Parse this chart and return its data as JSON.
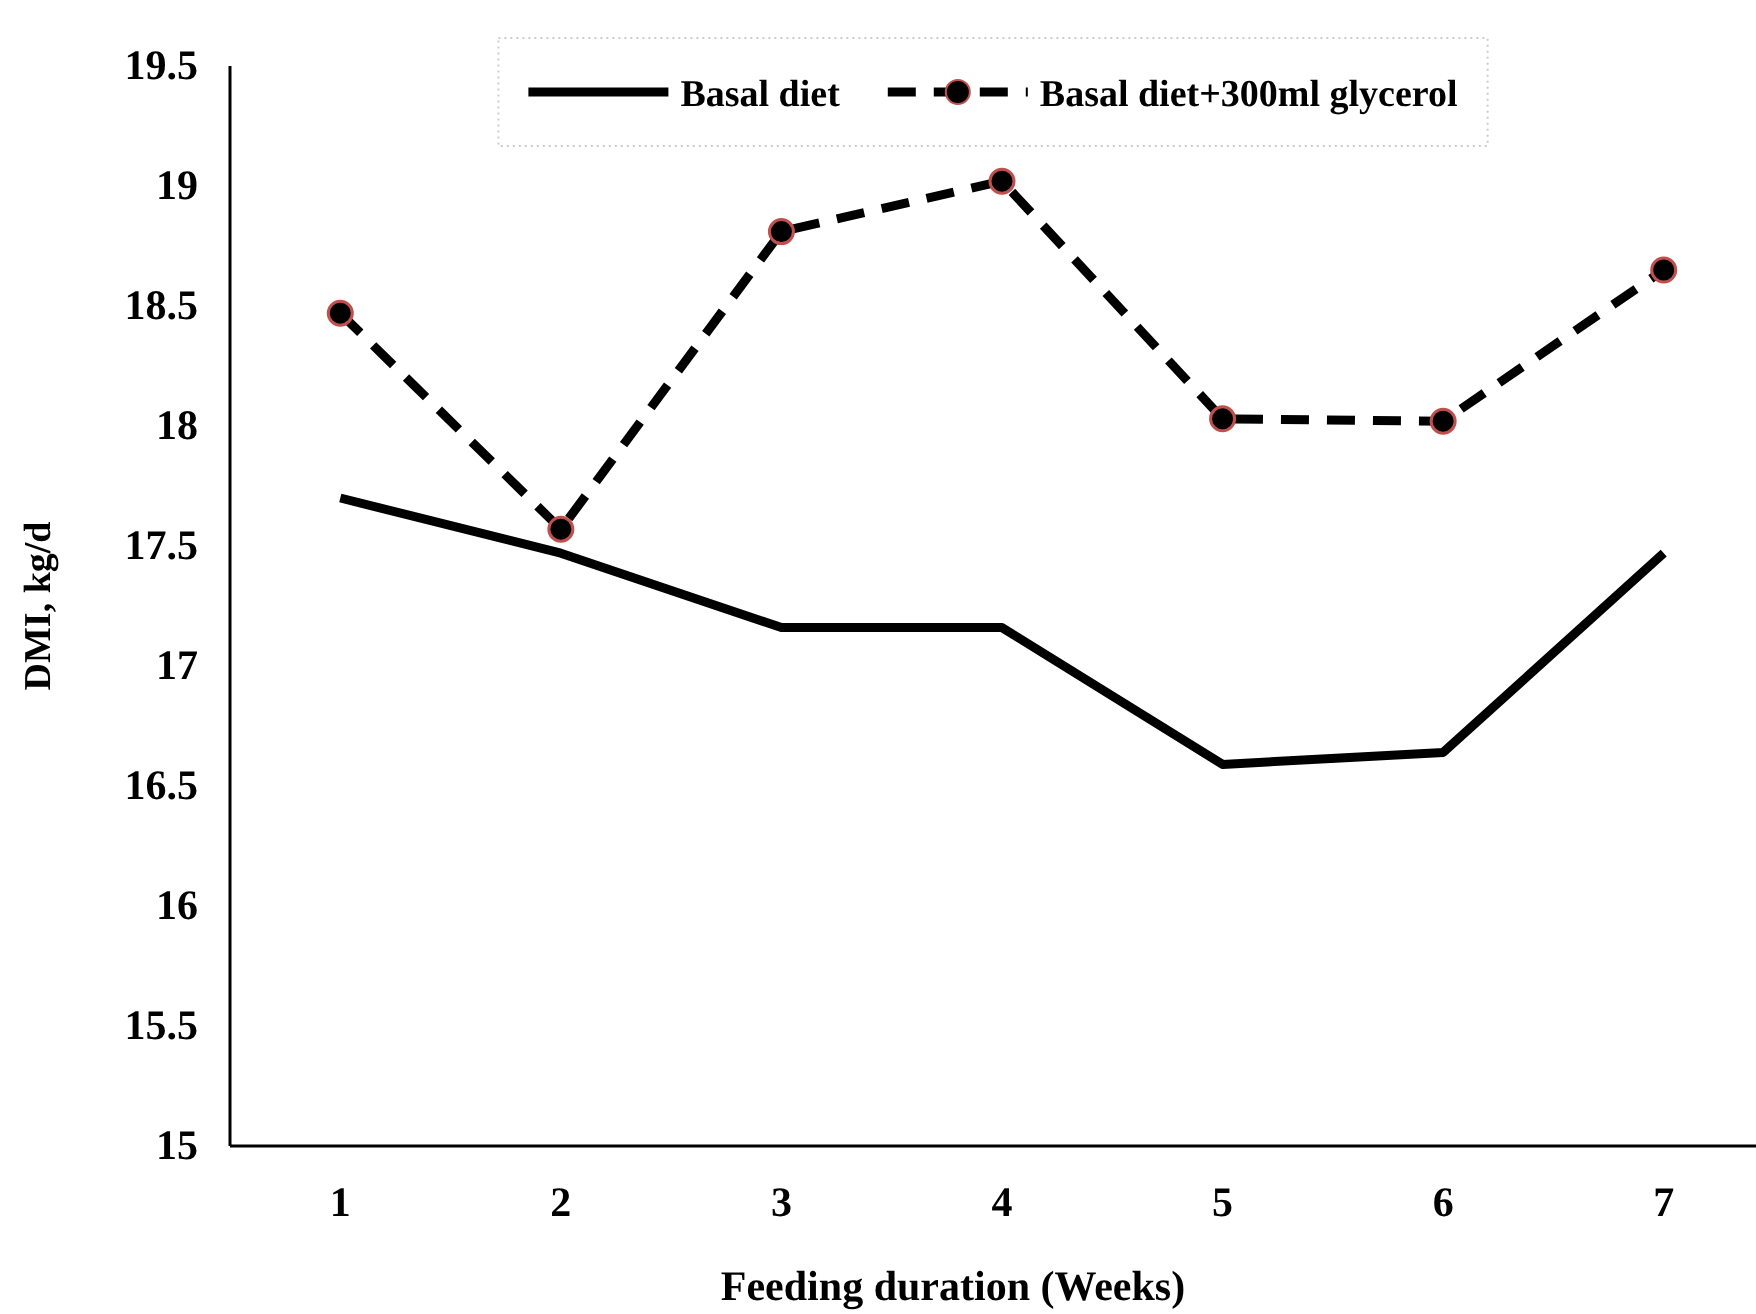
{
  "chart_data": {
    "type": "line",
    "xlabel": "Feeding duration (Weeks)",
    "ylabel": "DMI, kg/d",
    "categories": [
      "1",
      "2",
      "3",
      "4",
      "5",
      "6",
      "7"
    ],
    "series": [
      {
        "name": "Basal diet",
        "color": "#000000",
        "line_style": "solid",
        "marker": "none",
        "values": [
          17.7,
          17.47,
          17.16,
          17.16,
          16.59,
          16.64,
          17.47
        ]
      },
      {
        "name": "Basal diet+300ml glycerol",
        "color": "#000000",
        "line_style": "dashed",
        "marker": "circle",
        "values": [
          18.47,
          17.57,
          18.81,
          19.02,
          18.03,
          18.02,
          18.65
        ]
      }
    ],
    "ylim": [
      15,
      19.5
    ],
    "yticks": [
      15,
      15.5,
      16,
      16.5,
      17,
      17.5,
      18,
      18.5,
      19,
      19.5
    ],
    "grid": false,
    "legend": "top"
  }
}
